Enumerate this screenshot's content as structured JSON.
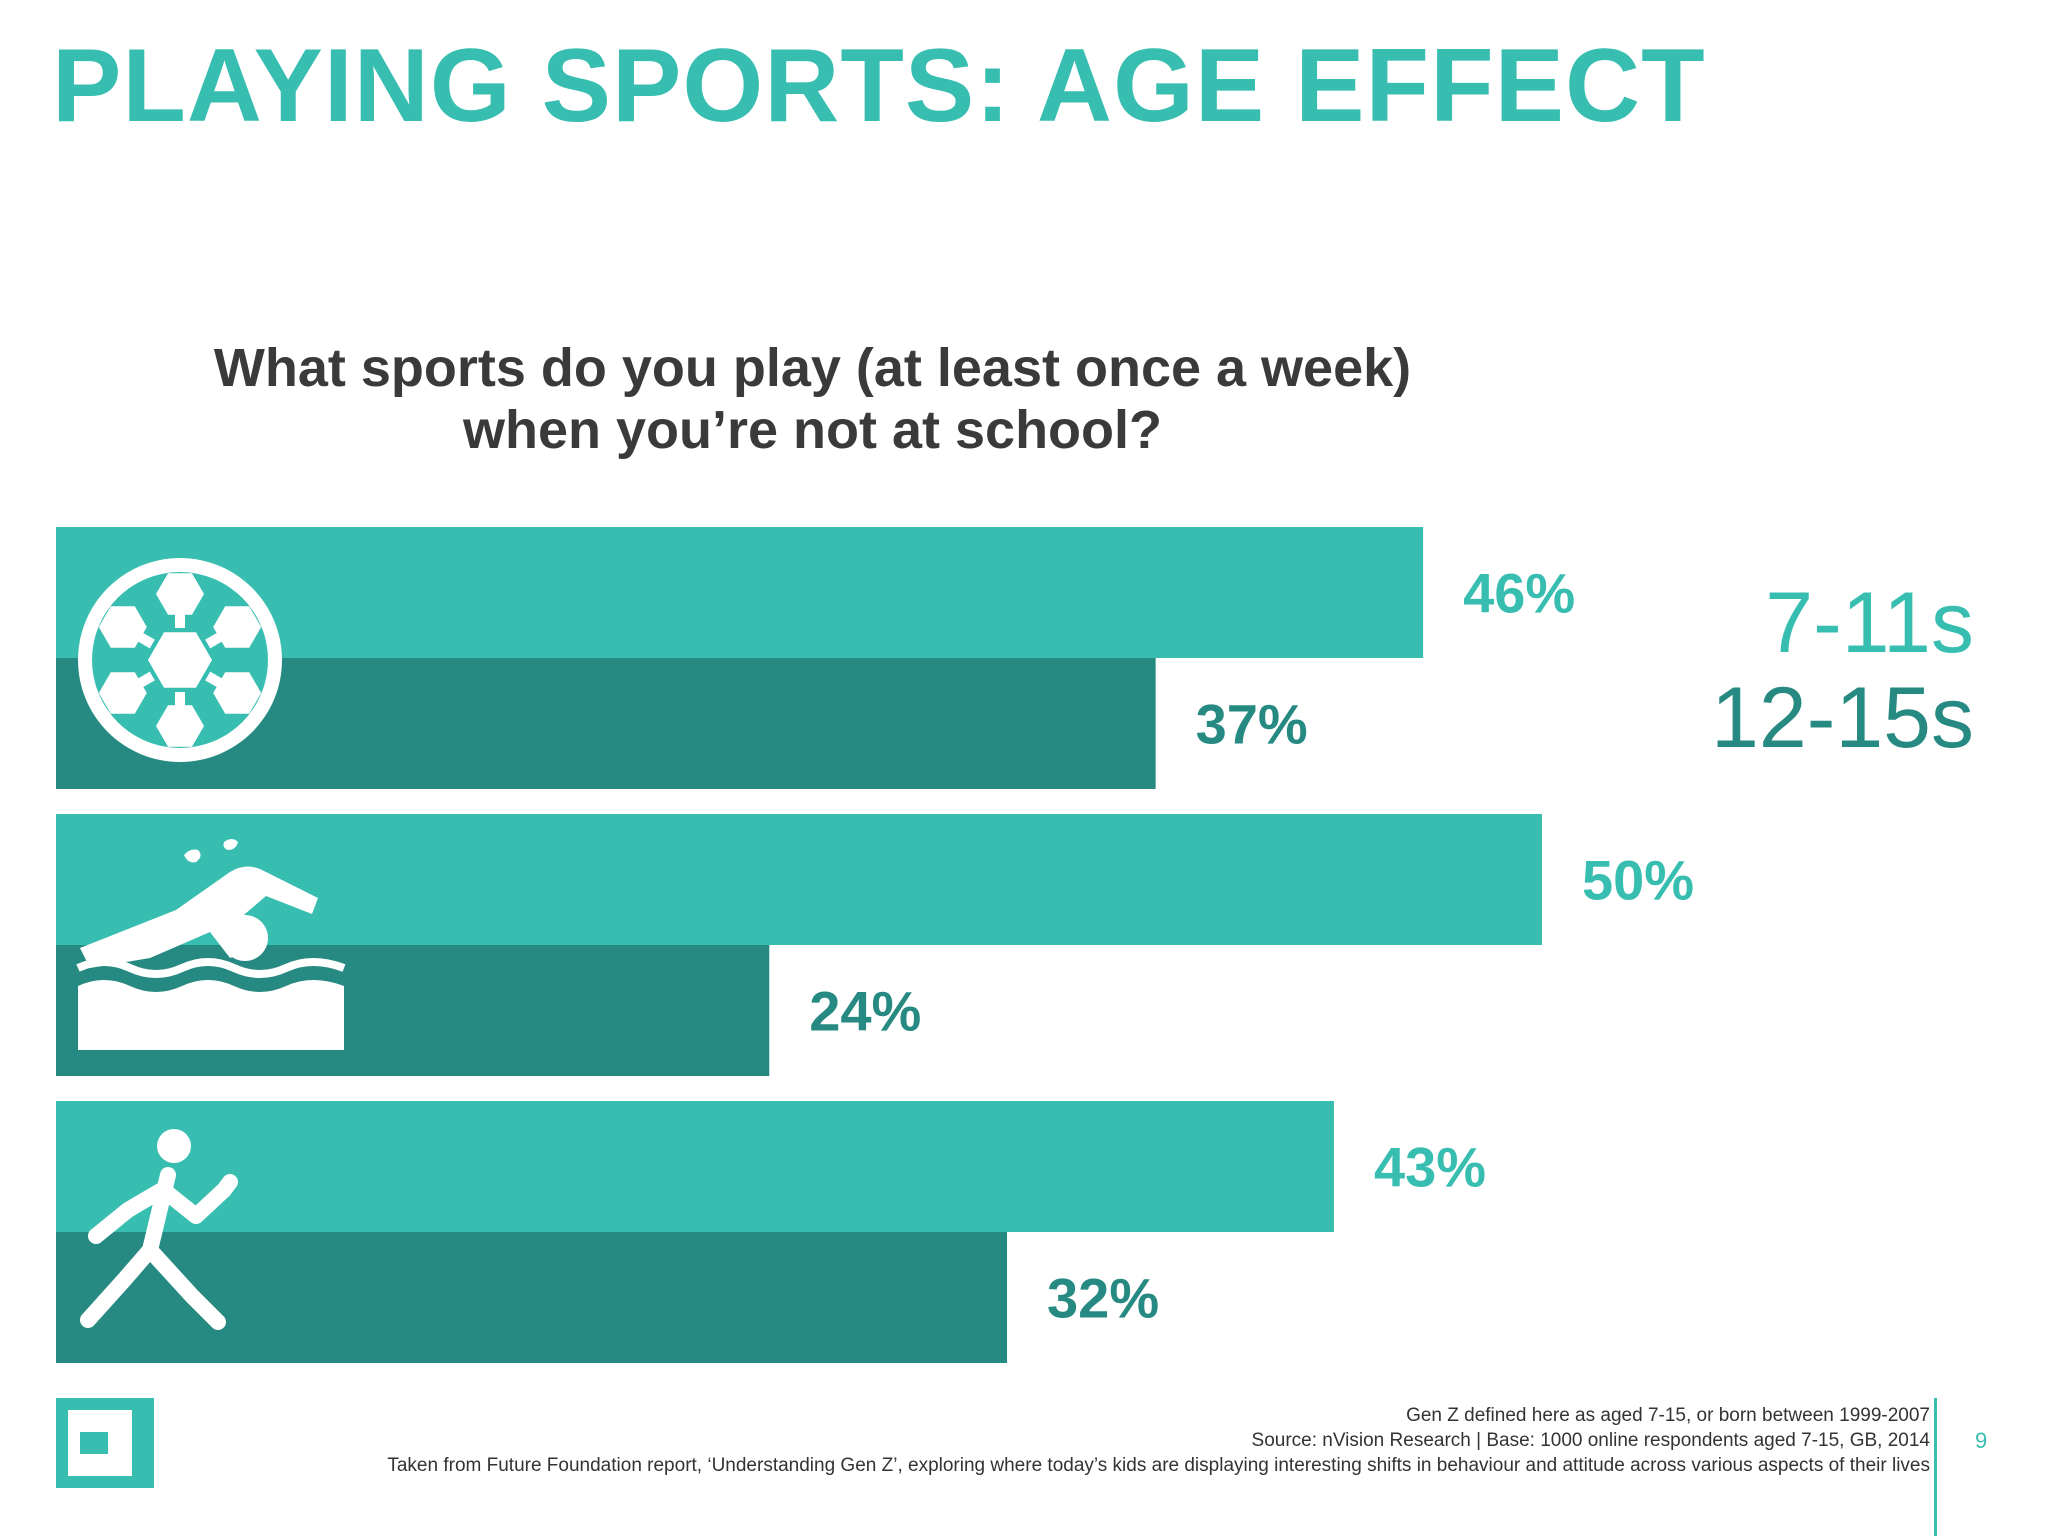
{
  "colors": {
    "accent": "#38BEB1",
    "dark_accent": "#268A82",
    "icon": "#FFFFFF",
    "text_dark": "#3A3A3A"
  },
  "slide": {
    "title": "PLAYING SPORTS: AGE EFFECT",
    "page_number": "9"
  },
  "legend": {
    "series_a": "7-11s",
    "series_b": "12-15s"
  },
  "footer": {
    "line1": "Gen Z defined here as aged 7-15, or born between 1999-2007",
    "line2": "Source: nVision Research | Base: 1000 online respondents aged 7-15, GB, 2014",
    "line3": "Taken from Future Foundation report, ‘Understanding Gen Z’, exploring where today’s kids are displaying interesting shifts in behaviour and attitude across various aspects of their lives"
  },
  "chart_data": {
    "type": "bar",
    "orientation": "horizontal",
    "title_lines": [
      "What sports do you play (at least once a week)",
      "when you’re not at school?"
    ],
    "categories": [
      "Football",
      "Swimming",
      "Running"
    ],
    "category_icons": [
      "soccer-ball-icon",
      "swimmer-icon",
      "runner-icon"
    ],
    "series": [
      {
        "name": "7-11s",
        "values": [
          46,
          50,
          43
        ],
        "labels": [
          "46%",
          "50%",
          "43%"
        ]
      },
      {
        "name": "12-15s",
        "values": [
          37,
          24,
          32
        ],
        "labels": [
          "37%",
          "24%",
          "32%"
        ]
      }
    ],
    "xlim": [
      0,
      50
    ],
    "grid": false,
    "legend_position": "right"
  }
}
